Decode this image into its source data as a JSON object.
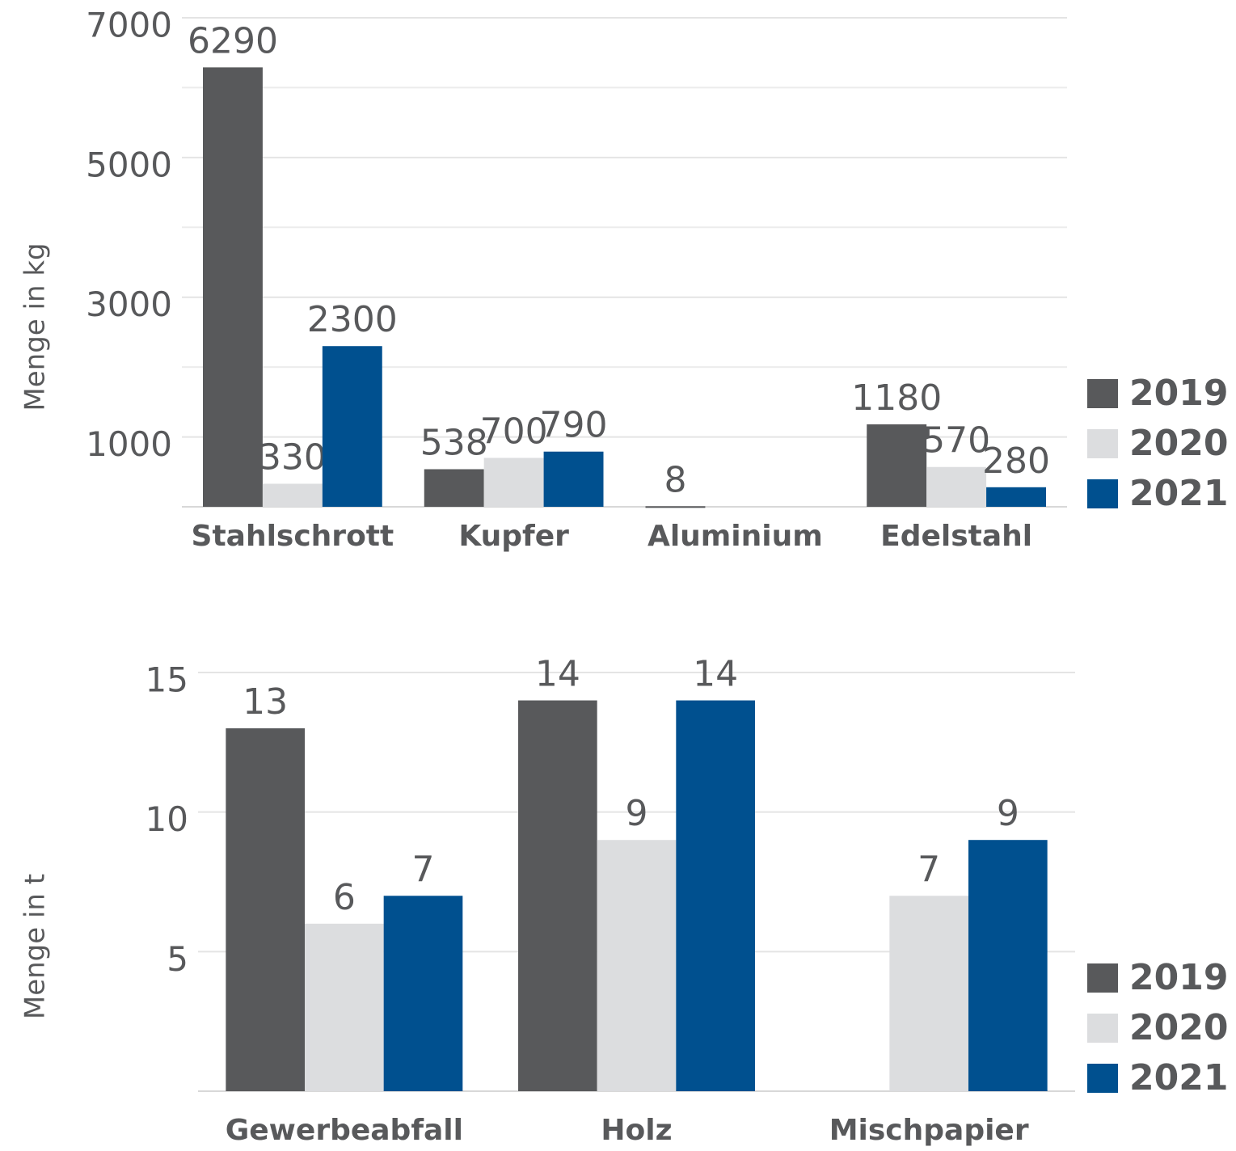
{
  "chart_data": [
    {
      "type": "bar",
      "y_label": "Menge in kg",
      "categories": [
        "Stahlschrott",
        "Kupfer",
        "Aluminium",
        "Edelstahl"
      ],
      "series": [
        {
          "name": "2019",
          "color": "#58595b",
          "values": [
            6290,
            538,
            8,
            1180
          ]
        },
        {
          "name": "2020",
          "color": "#dcdddf",
          "values": [
            330,
            700,
            null,
            570
          ]
        },
        {
          "name": "2021",
          "color": "#00508f",
          "values": [
            2300,
            790,
            null,
            280
          ]
        }
      ],
      "ylim": [
        0,
        7000
      ],
      "yticks": [
        1000,
        3000,
        5000,
        7000
      ],
      "minor_yticks": [
        2000,
        4000,
        6000
      ],
      "grid": true,
      "legend": "right"
    },
    {
      "type": "bar",
      "y_label": "Menge in t",
      "categories": [
        "Gewerbeabfall",
        "Holz",
        "Mischpapier"
      ],
      "series": [
        {
          "name": "2019",
          "color": "#58595b",
          "values": [
            13,
            14,
            null
          ]
        },
        {
          "name": "2020",
          "color": "#dcdddf",
          "values": [
            6,
            9,
            7
          ]
        },
        {
          "name": "2021",
          "color": "#00508f",
          "values": [
            7,
            14,
            9
          ]
        }
      ],
      "ylim": [
        0,
        15
      ],
      "yticks": [
        5,
        10,
        15
      ],
      "grid": true,
      "legend": "right"
    }
  ]
}
